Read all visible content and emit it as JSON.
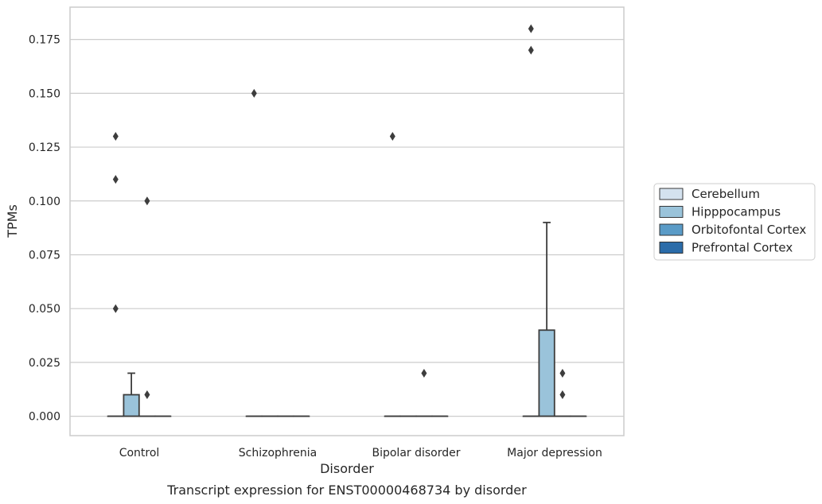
{
  "chart_data": {
    "type": "box",
    "caption": "Transcript expression for ENST00000468734 by disorder",
    "xlabel": "Disorder",
    "ylabel": "TPMs",
    "ylim": [
      -0.009,
      0.19
    ],
    "yticks": [
      "0.000",
      "0.025",
      "0.050",
      "0.075",
      "0.100",
      "0.125",
      "0.150",
      "0.175"
    ],
    "grid": "horizontal",
    "legend_position": "right",
    "categories": [
      "Control",
      "Schizophrenia",
      "Bipolar disorder",
      "Major depression"
    ],
    "series": [
      {
        "name": "Cerebellum",
        "color": "#d4e2ef",
        "boxes": [
          {
            "q1": 0,
            "median": 0,
            "q3": 0,
            "whislo": 0,
            "whishi": 0,
            "fliers": [
              0.13,
              0.11,
              0.05
            ]
          },
          {
            "q1": 0,
            "median": 0,
            "q3": 0,
            "whislo": 0,
            "whishi": 0,
            "fliers": [
              0.15
            ]
          },
          {
            "q1": 0,
            "median": 0,
            "q3": 0,
            "whislo": 0,
            "whishi": 0,
            "fliers": [
              0.13
            ]
          },
          {
            "q1": 0,
            "median": 0,
            "q3": 0,
            "whislo": 0,
            "whishi": 0,
            "fliers": [
              0.18,
              0.17
            ]
          }
        ]
      },
      {
        "name": "Hipppocampus",
        "color": "#9ac3da",
        "boxes": [
          {
            "q1": 0,
            "median": 0,
            "q3": 0.01,
            "whislo": 0,
            "whishi": 0.02,
            "fliers": []
          },
          {
            "q1": 0,
            "median": 0,
            "q3": 0,
            "whislo": 0,
            "whishi": 0,
            "fliers": []
          },
          {
            "q1": 0,
            "median": 0,
            "q3": 0,
            "whislo": 0,
            "whishi": 0,
            "fliers": []
          },
          {
            "q1": 0,
            "median": 0,
            "q3": 0.04,
            "whislo": 0,
            "whishi": 0.09,
            "fliers": []
          }
        ]
      },
      {
        "name": "Orbitofontal Cortex",
        "color": "#5a9bc7",
        "boxes": [
          {
            "q1": 0,
            "median": 0,
            "q3": 0,
            "whislo": 0,
            "whishi": 0,
            "fliers": [
              0.1,
              0.01
            ]
          },
          {
            "q1": 0,
            "median": 0,
            "q3": 0,
            "whislo": 0,
            "whishi": 0,
            "fliers": []
          },
          {
            "q1": 0,
            "median": 0,
            "q3": 0,
            "whislo": 0,
            "whishi": 0,
            "fliers": [
              0.02
            ]
          },
          {
            "q1": 0,
            "median": 0,
            "q3": 0,
            "whislo": 0,
            "whishi": 0,
            "fliers": [
              0.02,
              0.01
            ]
          }
        ]
      },
      {
        "name": "Prefrontal Cortex",
        "color": "#2b6ca9",
        "boxes": [
          {
            "q1": 0,
            "median": 0,
            "q3": 0,
            "whislo": 0,
            "whishi": 0,
            "fliers": []
          },
          {
            "q1": 0,
            "median": 0,
            "q3": 0,
            "whislo": 0,
            "whishi": 0,
            "fliers": []
          },
          {
            "q1": 0,
            "median": 0,
            "q3": 0,
            "whislo": 0,
            "whishi": 0,
            "fliers": []
          },
          {
            "q1": 0,
            "median": 0,
            "q3": 0,
            "whislo": 0,
            "whishi": 0,
            "fliers": []
          }
        ]
      }
    ]
  }
}
